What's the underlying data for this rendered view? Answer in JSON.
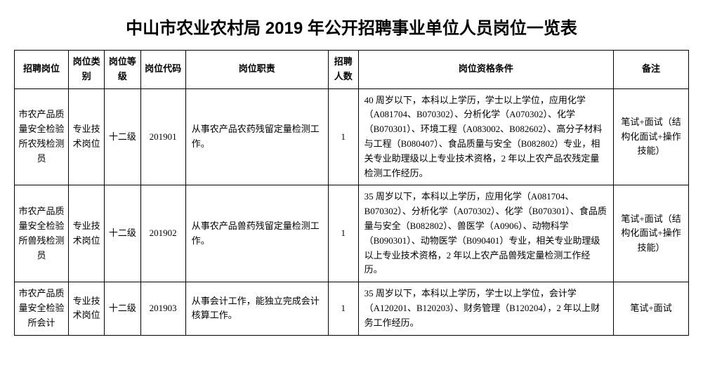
{
  "title": "中山市农业农村局 2019 年公开招聘事业单位人员岗位一览表",
  "columns": [
    "招聘岗位",
    "岗位类别",
    "岗位等级",
    "岗位代码",
    "岗位职责",
    "招聘人数",
    "岗位资格条件",
    "备注"
  ],
  "rows": [
    {
      "position": "市农产品质量安全检验所农残检测员",
      "category": "专业技术岗位",
      "grade": "十二级",
      "code": "201901",
      "duty": "从事农产品农药残留定量检测工作。",
      "count": "1",
      "requirement": "40 周岁以下，本科以上学历，学士以上学位，应用化学（A081704、B070302）、分析化学（A070302）、化学（B070301）、环境工程（A083002、B082602）、高分子材料与工程（B080407）、食品质量与安全（B082802）专业，相关专业助理级以上专业技术资格，2 年以上农产品农残定量检测工作经历。",
      "note": "笔试+面试（结构化面试+操作技能）"
    },
    {
      "position": "市农产品质量安全检验所兽残检测员",
      "category": "专业技术岗位",
      "grade": "十二级",
      "code": "201902",
      "duty": "从事农产品兽药残留定量检测工作。",
      "count": "1",
      "requirement": "35 周岁以下，本科以上学历，应用化学（A081704、B070302）、分析化学（A070302）、化学（B070301）、食品质量与安全（B082802）、兽医学（A0906）、动物科学（B090301）、动物医学（B090401）专业，相关专业助理级以上专业技术资格，2 年以上农产品兽残定量检测工作经历。",
      "note": "笔试+面试（结构化面试+操作技能）"
    },
    {
      "position": "市农产品质量安全检验所会计",
      "category": "专业技术岗位",
      "grade": "十二级",
      "code": "201903",
      "duty": "从事会计工作，能独立完成会计核算工作。",
      "count": "1",
      "requirement": "35 周岁以下，本科以上学历，学士以上学位，会计学（A120201、B120203）、财务管理（B120204），2 年以上财务工作经历。",
      "note": "笔试+面试"
    }
  ]
}
